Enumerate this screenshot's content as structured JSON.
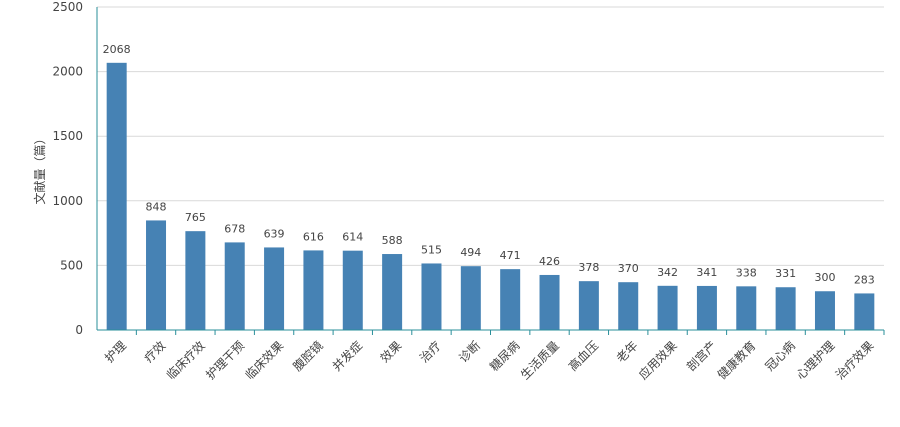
{
  "chart_data": {
    "type": "bar",
    "title": "",
    "xlabel": "",
    "ylabel": "文献量（篇）",
    "ylim": [
      0,
      2500
    ],
    "yticks": [
      0,
      500,
      1000,
      1500,
      2000,
      2500
    ],
    "grid": true,
    "legend": "none",
    "bar_color": "#4682b4",
    "axis_color": "#2a8f9a",
    "grid_color": "#d9d9d9",
    "categories": [
      "护理",
      "疗效",
      "临床疗效",
      "护理干预",
      "临床效果",
      "腹腔镜",
      "并发症",
      "效果",
      "治疗",
      "诊断",
      "糖尿病",
      "生活质量",
      "高血压",
      "老年",
      "应用效果",
      "剖宫产",
      "健康教育",
      "冠心病",
      "心理护理",
      "治疗效果"
    ],
    "values": [
      2068,
      848,
      765,
      678,
      639,
      616,
      614,
      588,
      515,
      494,
      471,
      426,
      378,
      370,
      342,
      341,
      338,
      331,
      300,
      283
    ]
  }
}
